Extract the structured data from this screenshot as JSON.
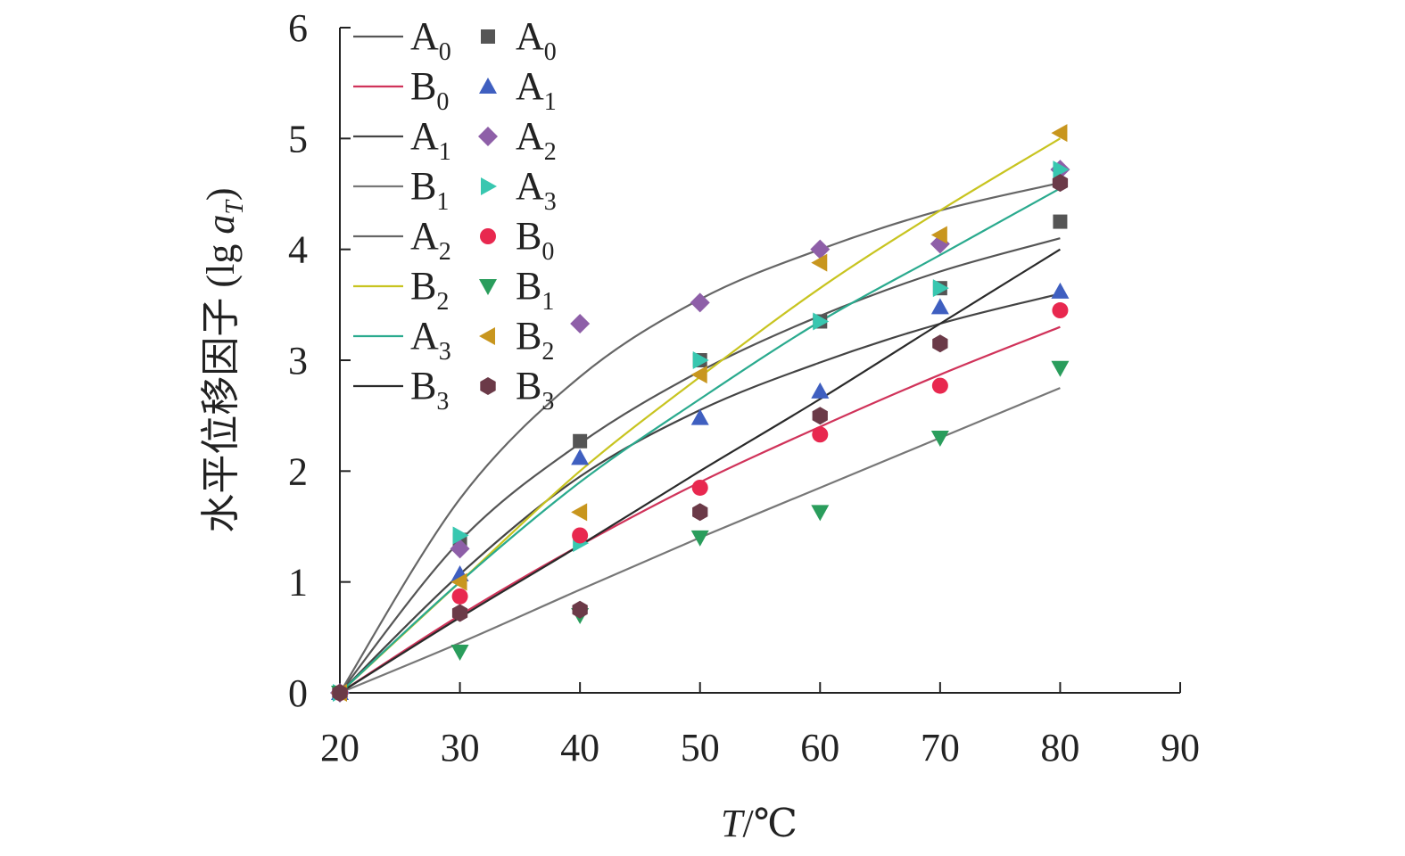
{
  "chart_data": {
    "type": "scatter",
    "title": "",
    "xlabel": "T/℃",
    "xlabel_main": "T",
    "xlabel_unit": "/℃",
    "ylabel": "水平位移因子 (lg aT)",
    "ylabel_main": "水平位移因子 (lg ",
    "ylabel_var": "a",
    "ylabel_sub": "T",
    "ylabel_close": ")",
    "xlim": [
      20,
      90
    ],
    "ylim": [
      0,
      6
    ],
    "xticks": [
      20,
      30,
      40,
      50,
      60,
      70,
      80,
      90
    ],
    "yticks": [
      0,
      1,
      2,
      3,
      4,
      5,
      6
    ],
    "grid": false,
    "legend_position": "top-left",
    "line_series": [
      {
        "name": "A0",
        "base": "A",
        "sub": "0",
        "color": "#555555",
        "x": [
          20,
          30,
          40,
          50,
          60,
          70,
          80
        ],
        "y": [
          0,
          1.37,
          2.25,
          2.9,
          3.4,
          3.8,
          4.1
        ]
      },
      {
        "name": "B0",
        "base": "B",
        "sub": "0",
        "color": "#d0335a",
        "x": [
          20,
          30,
          40,
          50,
          60,
          70,
          80
        ],
        "y": [
          0,
          0.7,
          1.33,
          1.9,
          2.4,
          2.87,
          3.3
        ]
      },
      {
        "name": "A1",
        "base": "A",
        "sub": "1",
        "color": "#444444",
        "x": [
          20,
          30,
          40,
          50,
          60,
          70,
          80
        ],
        "y": [
          0,
          1.07,
          1.95,
          2.55,
          2.98,
          3.33,
          3.6
        ]
      },
      {
        "name": "B1",
        "base": "B",
        "sub": "1",
        "color": "#777777",
        "x": [
          20,
          30,
          40,
          50,
          60,
          70,
          80
        ],
        "y": [
          0,
          0.45,
          0.93,
          1.4,
          1.85,
          2.3,
          2.75
        ]
      },
      {
        "name": "A2",
        "base": "A",
        "sub": "2",
        "color": "#666666",
        "x": [
          20,
          30,
          40,
          50,
          60,
          70,
          80
        ],
        "y": [
          0,
          1.75,
          2.85,
          3.55,
          4.0,
          4.35,
          4.6
        ]
      },
      {
        "name": "B2",
        "base": "B",
        "sub": "2",
        "color": "#c8c420",
        "x": [
          20,
          30,
          40,
          50,
          60,
          70,
          80
        ],
        "y": [
          0,
          1.0,
          2.0,
          2.85,
          3.65,
          4.35,
          5.0
        ]
      },
      {
        "name": "A3",
        "base": "A",
        "sub": "3",
        "color": "#2aaa8e",
        "x": [
          20,
          30,
          40,
          50,
          60,
          70,
          80
        ],
        "y": [
          0,
          1.0,
          1.9,
          2.65,
          3.35,
          3.95,
          4.55
        ]
      },
      {
        "name": "B3",
        "base": "B",
        "sub": "3",
        "color": "#2a2a2a",
        "x": [
          20,
          30,
          40,
          50,
          60,
          70,
          80
        ],
        "y": [
          0,
          0.68,
          1.33,
          2.0,
          2.65,
          3.33,
          4.0
        ]
      }
    ],
    "marker_series": [
      {
        "name": "A0",
        "base": "A",
        "sub": "0",
        "marker": "square",
        "color": "#555555",
        "x": [
          20,
          30,
          40,
          50,
          60,
          70,
          80
        ],
        "y": [
          0,
          1.38,
          2.27,
          3.0,
          3.35,
          3.65,
          4.25
        ]
      },
      {
        "name": "A1",
        "base": "A",
        "sub": "1",
        "marker": "triangle-up",
        "color": "#3f5fc0",
        "x": [
          20,
          30,
          40,
          50,
          60,
          70,
          80
        ],
        "y": [
          0,
          1.07,
          2.12,
          2.48,
          2.72,
          3.48,
          3.62
        ]
      },
      {
        "name": "A2",
        "base": "A",
        "sub": "2",
        "marker": "diamond",
        "color": "#8e5fa8",
        "x": [
          20,
          30,
          40,
          50,
          60,
          70,
          80
        ],
        "y": [
          0,
          1.3,
          3.33,
          3.52,
          4.0,
          4.05,
          4.72
        ]
      },
      {
        "name": "A3",
        "base": "A",
        "sub": "3",
        "marker": "triangle-right",
        "color": "#38c7b0",
        "x": [
          20,
          30,
          40,
          50,
          60,
          70,
          80
        ],
        "y": [
          0,
          1.42,
          1.35,
          3.0,
          3.35,
          3.65,
          4.72
        ]
      },
      {
        "name": "B0",
        "base": "B",
        "sub": "0",
        "marker": "circle",
        "color": "#e8284f",
        "x": [
          20,
          30,
          40,
          50,
          60,
          70,
          80
        ],
        "y": [
          0,
          0.87,
          1.42,
          1.85,
          2.33,
          2.77,
          3.45
        ]
      },
      {
        "name": "B1",
        "base": "B",
        "sub": "1",
        "marker": "triangle-down",
        "color": "#2a9d5c",
        "x": [
          20,
          30,
          40,
          50,
          60,
          70,
          80
        ],
        "y": [
          0,
          0.37,
          0.7,
          1.4,
          1.63,
          2.3,
          2.93
        ]
      },
      {
        "name": "B2",
        "base": "B",
        "sub": "2",
        "marker": "triangle-left",
        "color": "#c8961e",
        "x": [
          20,
          30,
          40,
          50,
          60,
          70,
          80
        ],
        "y": [
          0,
          1.0,
          1.63,
          2.87,
          3.88,
          4.13,
          5.05
        ]
      },
      {
        "name": "B3",
        "base": "B",
        "sub": "3",
        "marker": "hexagon",
        "color": "#6b3a48",
        "x": [
          20,
          30,
          40,
          50,
          60,
          70,
          80
        ],
        "y": [
          0,
          0.72,
          0.75,
          1.63,
          2.5,
          3.15,
          4.6
        ]
      }
    ]
  }
}
